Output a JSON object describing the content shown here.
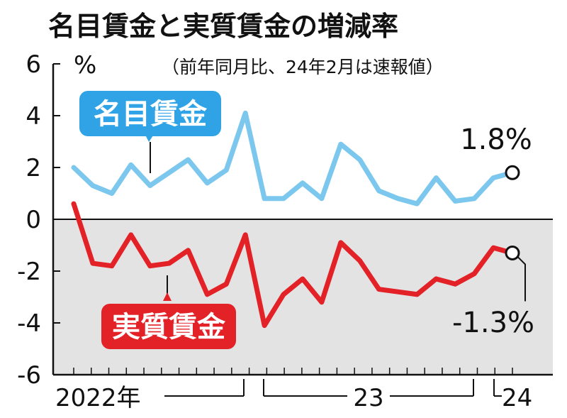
{
  "chart_data": {
    "type": "line",
    "title": "名目賃金と実質賃金の増減率",
    "subtitle": "（前年同月比、24年2月は速報値）",
    "yunit": "%",
    "ylim": [
      -6,
      6
    ],
    "yticks": [
      "6",
      "4",
      "2",
      "0",
      "-2",
      "-4",
      "-6"
    ],
    "ytick_values": [
      6,
      4,
      2,
      0,
      -2,
      -4,
      -6
    ],
    "x_period_labels": [
      "2022年",
      "23",
      "24"
    ],
    "x_count": 26,
    "shade_below_zero": true,
    "series": [
      {
        "name": "名目賃金",
        "color": "#7cc7ee",
        "label_box_color": "#2fa3e6",
        "values": [
          2.0,
          1.3,
          1.0,
          2.1,
          1.3,
          1.8,
          2.3,
          1.4,
          1.9,
          4.1,
          0.8,
          0.8,
          1.4,
          0.8,
          2.9,
          2.3,
          1.1,
          0.8,
          0.6,
          1.6,
          0.7,
          0.8,
          1.6,
          1.8
        ],
        "end_label": "1.8%"
      },
      {
        "name": "実質賃金",
        "color": "#e32228",
        "label_box_color": "#e32228",
        "values": [
          0.6,
          -1.7,
          -1.8,
          -0.6,
          -1.8,
          -1.7,
          -1.2,
          -2.9,
          -2.5,
          -0.6,
          -4.1,
          -2.9,
          -2.3,
          -3.2,
          -0.9,
          -1.6,
          -2.7,
          -2.8,
          -2.9,
          -2.3,
          -2.5,
          -2.1,
          -1.1,
          -1.3
        ],
        "end_label": "-1.3%"
      }
    ]
  }
}
